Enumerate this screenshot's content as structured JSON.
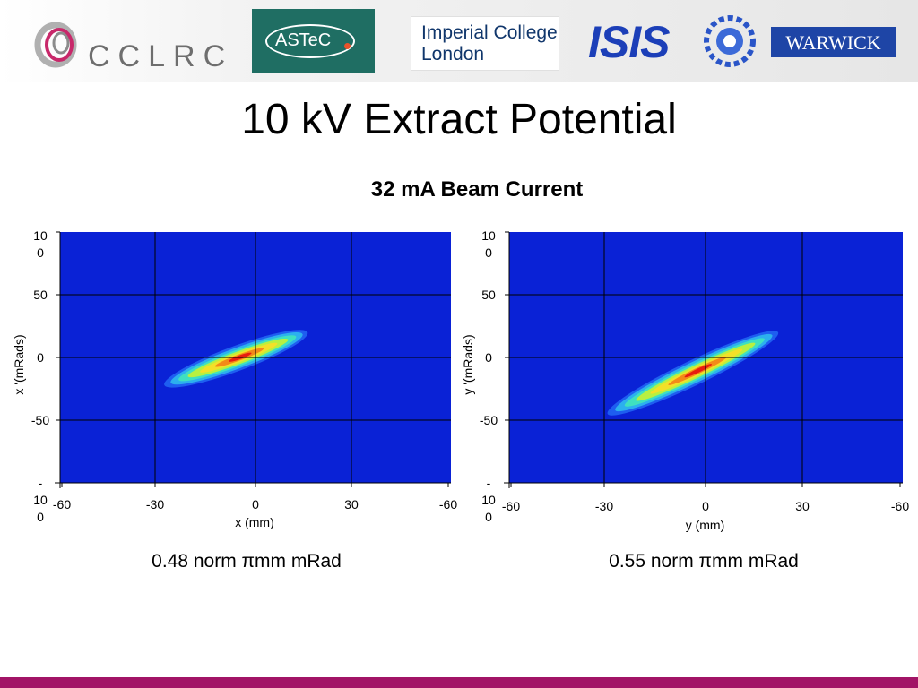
{
  "header": {
    "logos": [
      {
        "name": "cclrc",
        "text": "CCLRC"
      },
      {
        "name": "astec",
        "text": "ASTeC"
      },
      {
        "name": "imperial",
        "line1": "Imperial College",
        "line2": "London"
      },
      {
        "name": "isis",
        "text": "ISIS"
      },
      {
        "name": "warwick",
        "text": "WARWICK"
      }
    ]
  },
  "title": "10 kV Extract Potential",
  "subtitle": "32 mA Beam Current",
  "colors": {
    "background_level": "#0a22d6",
    "contour_scale": [
      "#1e5ef0",
      "#2cb0ee",
      "#3fe0c0",
      "#b8f040",
      "#f3e028",
      "#f38a18",
      "#e81c10"
    ],
    "accent_bar": "#a21466"
  },
  "chart_data": [
    {
      "type": "heatmap",
      "xlabel": "x (mm)",
      "ylabel": "x '(mRads)",
      "x_ticks": [
        "-60",
        "-30",
        "0",
        "30",
        "-60"
      ],
      "y_ticks": [
        "10\n0",
        "50",
        "0",
        "-50",
        "-\n10\n0"
      ],
      "xlim": [
        -60,
        60
      ],
      "ylim": [
        -100,
        100
      ],
      "grid": true,
      "emittance_label": "0.48 norm πmm mRad",
      "distribution": {
        "x_min": -28,
        "x_max": 16,
        "angle_at_x_min": -22,
        "angle_at_x_max": 20,
        "peak_x": -3
      }
    },
    {
      "type": "heatmap",
      "xlabel": "y (mm)",
      "ylabel": "y '(mRads)",
      "x_ticks": [
        "-60",
        "-30",
        "0",
        "30",
        "-60"
      ],
      "y_ticks": [
        "10\n0",
        "50",
        "0",
        "-50",
        "-\n10\n0"
      ],
      "xlim": [
        -60,
        60
      ],
      "ylim": [
        -100,
        100
      ],
      "grid": true,
      "emittance_label": "0.55 norm πmm mRad",
      "distribution": {
        "x_min": -30,
        "x_max": 22,
        "angle_at_x_min": -45,
        "angle_at_x_max": 20,
        "peak_x": 0
      }
    }
  ]
}
